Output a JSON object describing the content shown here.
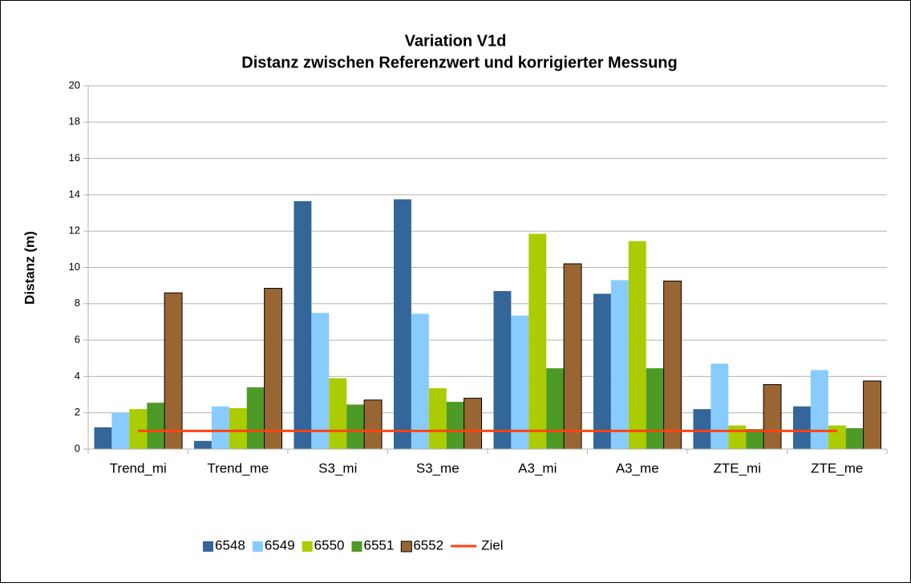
{
  "chart_data": {
    "type": "bar",
    "title": "Variation V1d",
    "subtitle": "Distanz zwischen Referenzwert und korrigierter Messung",
    "y_label": "Distanz  (m)",
    "categories": [
      "Trend_mi",
      "Trend_me",
      "S3_mi",
      "S3_me",
      "A3_mi",
      "A3_me",
      "ZTE_mi",
      "ZTE_me"
    ],
    "series": [
      {
        "name": "6548",
        "color": "#336699",
        "values": [
          1.2,
          0.45,
          13.65,
          13.75,
          8.7,
          8.55,
          2.2,
          2.35
        ]
      },
      {
        "name": "6549",
        "color": "#88ccff",
        "values": [
          2.0,
          2.35,
          7.5,
          7.45,
          7.35,
          9.3,
          4.7,
          4.35
        ]
      },
      {
        "name": "6550",
        "color": "#aacc00",
        "values": [
          2.2,
          2.25,
          3.9,
          3.35,
          11.85,
          11.45,
          1.3,
          1.3
        ]
      },
      {
        "name": "6551",
        "color": "#4e9a26",
        "values": [
          2.55,
          3.4,
          2.45,
          2.6,
          4.45,
          4.45,
          1.1,
          1.15
        ]
      },
      {
        "name": "6552",
        "color": "#996633",
        "values": [
          8.6,
          8.85,
          2.7,
          2.8,
          10.2,
          9.25,
          3.55,
          3.75
        ]
      },
      {
        "name": "Ziel",
        "color": "#ff420e",
        "type": "line",
        "values": [
          1,
          1,
          1,
          1,
          1,
          1,
          1,
          1
        ]
      }
    ],
    "ylim": [
      0,
      20
    ],
    "yticks": [
      0,
      2,
      4,
      6,
      8,
      10,
      12,
      14,
      16,
      18,
      20
    ],
    "grid": true,
    "legend": "bottom"
  }
}
